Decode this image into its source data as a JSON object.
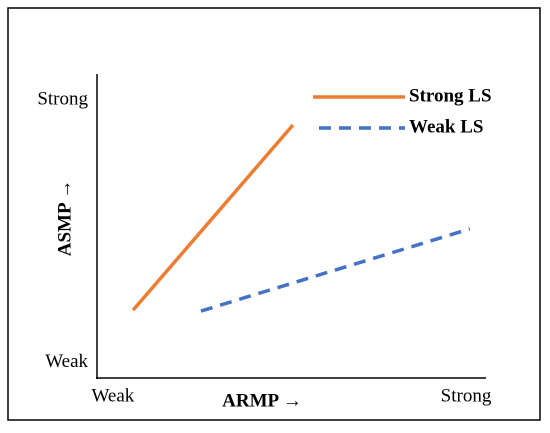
{
  "chart_data": {
    "type": "line",
    "xlabel": "ARMP →",
    "ylabel": "ASMP →",
    "xlim": [
      0,
      10
    ],
    "ylim": [
      0,
      10
    ],
    "xticks": [
      {
        "value": 0.41,
        "label": "Weak"
      },
      {
        "value": 9.51,
        "label": "Strong"
      }
    ],
    "yticks": [
      {
        "value": 0.5,
        "label": "Weak"
      },
      {
        "value": 9.17,
        "label": "Strong"
      }
    ],
    "grid": false,
    "legend": "upper right",
    "series": [
      {
        "name": "Strong LS",
        "color": "#ed7d31",
        "dash": false,
        "x": [
          0.93,
          5.05
        ],
        "values": [
          2.24,
          8.35
        ]
      },
      {
        "name": "Weak LS",
        "color": "#4472c4",
        "dash": true,
        "x": [
          2.68,
          9.61
        ],
        "values": [
          2.21,
          4.92
        ]
      }
    ]
  }
}
